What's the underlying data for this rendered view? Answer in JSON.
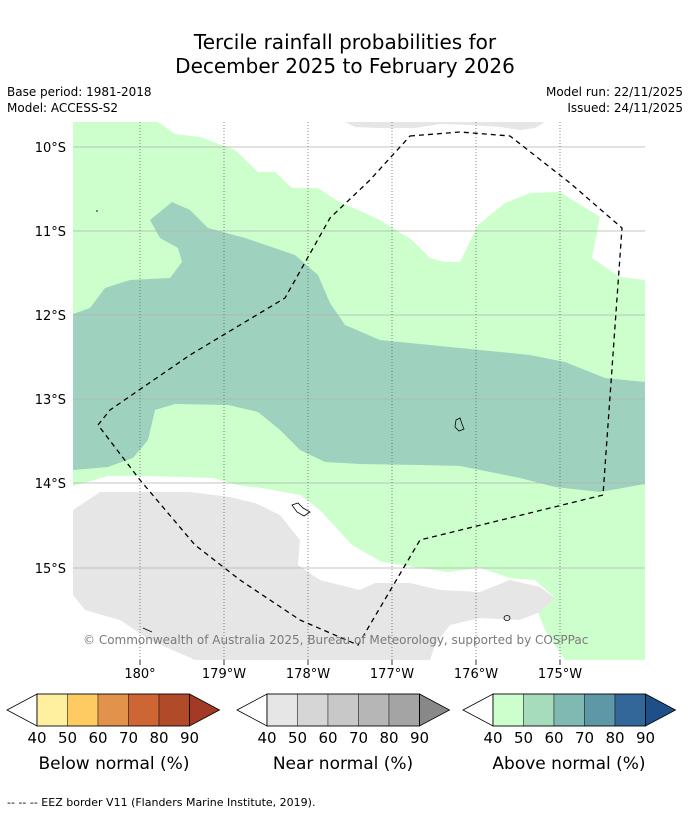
{
  "title_line1": "Tercile rainfall probabilities for",
  "title_line2": "December 2025 to February 2026",
  "base_period": "Base period: 1981-2018",
  "model": "Model: ACCESS-S2",
  "model_run": "Model run: 22/11/2025",
  "issued": "Issued: 24/11/2025",
  "copyright": "© Commonwealth of Australia 2025, Bureau of Meteorology, supported by COSPPac",
  "footnote": "--  --  -- EEZ border V11 (Flanders Marine Institute, 2019).",
  "lat_labels": [
    "10°S",
    "11°S",
    "12°S",
    "13°S",
    "14°S",
    "15°S"
  ],
  "lon_labels": [
    "180°",
    "179°W",
    "178°W",
    "177°W",
    "176°W",
    "175°W"
  ],
  "colorbars": [
    {
      "name": "below",
      "label": "Below normal (%)",
      "ticks": [
        "40",
        "50",
        "60",
        "70",
        "80",
        "90"
      ],
      "colors": [
        "#fff0a0",
        "#fecb63",
        "#e2924a",
        "#cd6535",
        "#b04a29",
        "#a33a25"
      ]
    },
    {
      "name": "near",
      "label": "Near normal (%)",
      "ticks": [
        "40",
        "50",
        "60",
        "70",
        "80",
        "90"
      ],
      "colors": [
        "#e6e6e6",
        "#d6d6d6",
        "#c8c8c8",
        "#b6b6b6",
        "#a4a4a4",
        "#888888"
      ]
    },
    {
      "name": "above",
      "label": "Above normal (%)",
      "ticks": [
        "40",
        "50",
        "60",
        "70",
        "80",
        "90"
      ],
      "colors": [
        "#ccffcc",
        "#a6dcbc",
        "#80b8b2",
        "#5e97a6",
        "#336699",
        "#1f4f88"
      ]
    }
  ],
  "map_colors": {
    "above_40": "#ccffcc",
    "above_50": "#9ed2be",
    "near_40": "#e6e6e6",
    "eez_line": "#000000"
  }
}
